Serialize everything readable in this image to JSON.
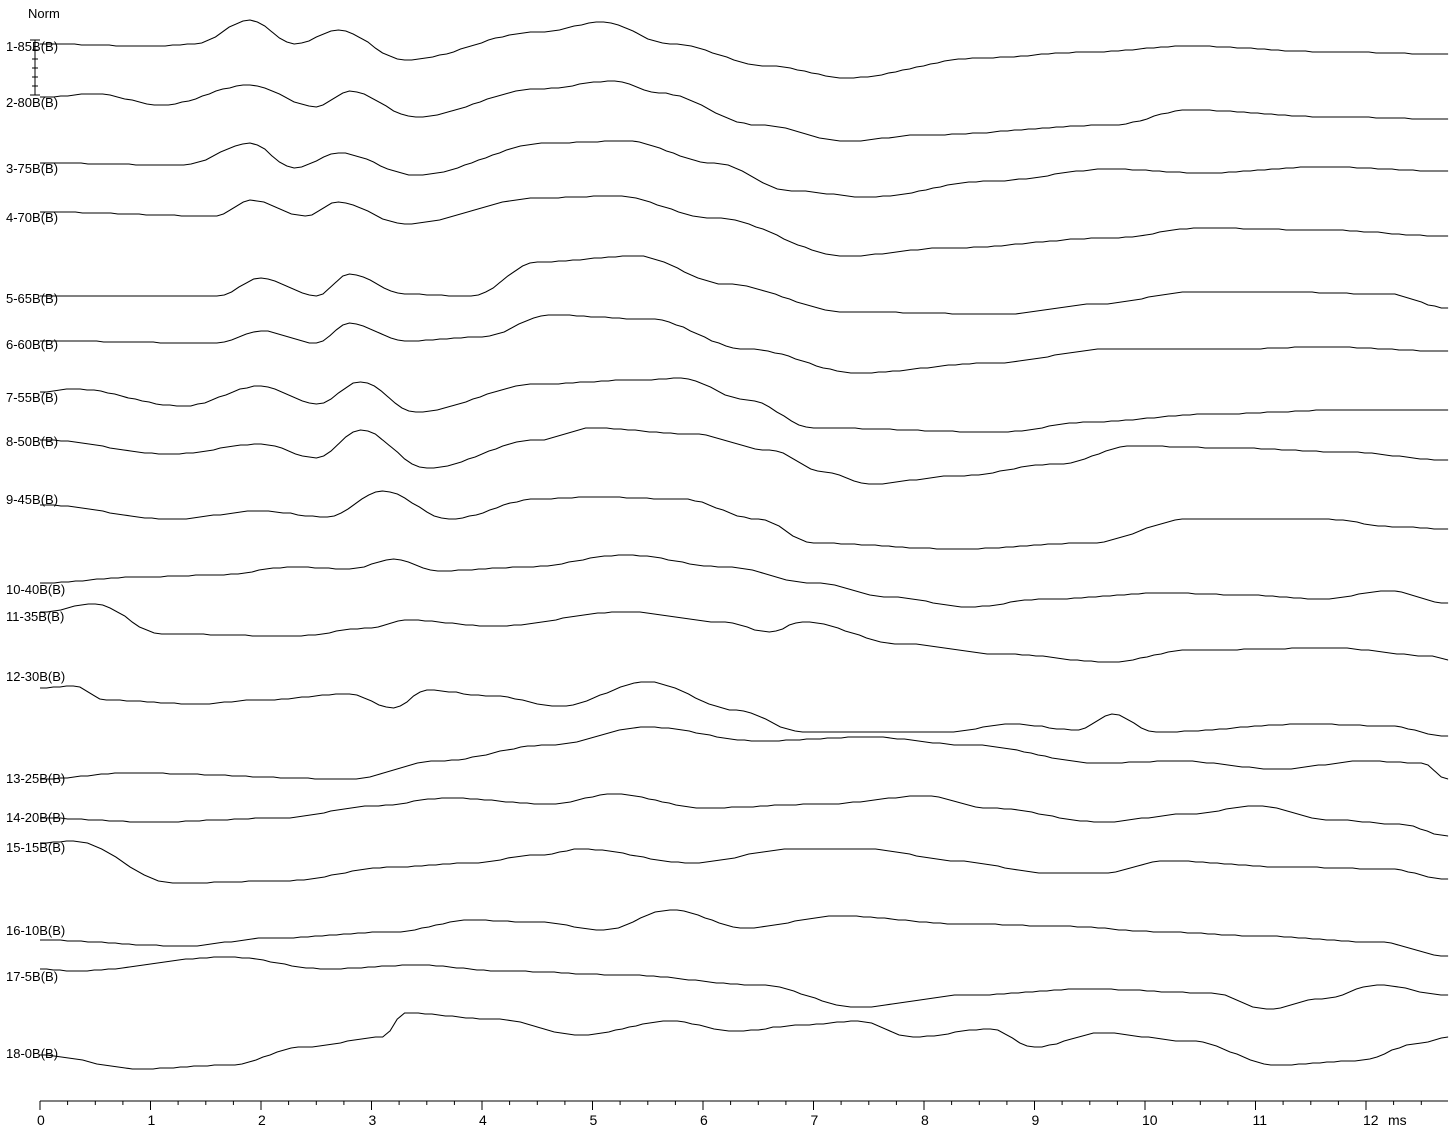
{
  "chart_data": {
    "type": "line",
    "title": "",
    "scale_label": "Norm",
    "xlabel": "ms",
    "xlim": [
      0,
      12.75
    ],
    "x_ticks": [
      "0",
      "1",
      "2",
      "3",
      "4",
      "5",
      "6",
      "7",
      "8",
      "9",
      "10",
      "11",
      "12"
    ],
    "grid": false,
    "series": [
      {
        "name": "1-85B(B)",
        "baseline": 0,
        "points": [
          [
            0,
            0
          ],
          [
            1,
            -2
          ],
          [
            1.4,
            0
          ],
          [
            1.9,
            24
          ],
          [
            2.3,
            0
          ],
          [
            2.7,
            14
          ],
          [
            3.3,
            -16
          ],
          [
            4.5,
            12
          ],
          [
            5.1,
            22
          ],
          [
            5.7,
            0
          ],
          [
            6.6,
            -22
          ],
          [
            7.3,
            -34
          ],
          [
            8.5,
            -14
          ],
          [
            9.5,
            -8
          ],
          [
            10.4,
            -2
          ],
          [
            11.7,
            -8
          ],
          [
            12.75,
            -10
          ]
        ]
      },
      {
        "name": "2-80B(B)",
        "baseline": 0,
        "points": [
          [
            0,
            0
          ],
          [
            0.5,
            3
          ],
          [
            1.1,
            -8
          ],
          [
            1.9,
            12
          ],
          [
            2.5,
            -10
          ],
          [
            2.8,
            6
          ],
          [
            3.4,
            -20
          ],
          [
            4.5,
            8
          ],
          [
            5.2,
            16
          ],
          [
            5.6,
            4
          ],
          [
            6.5,
            -28
          ],
          [
            7.3,
            -44
          ],
          [
            8,
            -38
          ],
          [
            9.7,
            -28
          ],
          [
            10.4,
            -13
          ],
          [
            11.7,
            -20
          ],
          [
            12.75,
            -22
          ]
        ]
      },
      {
        "name": "3-75B(B)",
        "baseline": 0,
        "points": [
          [
            0,
            0
          ],
          [
            1.3,
            -2
          ],
          [
            1.9,
            20
          ],
          [
            2.3,
            -5
          ],
          [
            2.7,
            10
          ],
          [
            3.4,
            -12
          ],
          [
            4.6,
            20
          ],
          [
            5.3,
            22
          ],
          [
            6.1,
            0
          ],
          [
            6.8,
            -28
          ],
          [
            7.5,
            -34
          ],
          [
            8.6,
            -18
          ],
          [
            9.7,
            -6
          ],
          [
            10.5,
            -10
          ],
          [
            11.6,
            -4
          ],
          [
            12.75,
            -8
          ]
        ]
      },
      {
        "name": "4-70B(B)",
        "baseline": 0,
        "points": [
          [
            0,
            0
          ],
          [
            1.6,
            -4
          ],
          [
            1.9,
            12
          ],
          [
            2.4,
            -4
          ],
          [
            2.7,
            10
          ],
          [
            3.3,
            -12
          ],
          [
            4.5,
            14
          ],
          [
            5.2,
            16
          ],
          [
            6.1,
            -6
          ],
          [
            7.3,
            -44
          ],
          [
            8.2,
            -36
          ],
          [
            9.7,
            -26
          ],
          [
            10.5,
            -16
          ],
          [
            11.6,
            -18
          ],
          [
            12.75,
            -24
          ]
        ]
      },
      {
        "name": "5-65B(B)",
        "baseline": 0,
        "points": [
          [
            0,
            0
          ],
          [
            1.6,
            0
          ],
          [
            2,
            18
          ],
          [
            2.5,
            0
          ],
          [
            2.8,
            22
          ],
          [
            3.3,
            2
          ],
          [
            3.9,
            0
          ],
          [
            4.5,
            34
          ],
          [
            5.4,
            40
          ],
          [
            6.2,
            12
          ],
          [
            7.3,
            -16
          ],
          [
            8.7,
            -18
          ],
          [
            9.6,
            -8
          ],
          [
            10.4,
            4
          ],
          [
            11.2,
            4
          ],
          [
            12.2,
            2
          ],
          [
            12.75,
            -12
          ]
        ]
      },
      {
        "name": "6-60B(B)",
        "baseline": 0,
        "points": [
          [
            0,
            0
          ],
          [
            1.6,
            -2
          ],
          [
            2,
            10
          ],
          [
            2.5,
            -2
          ],
          [
            2.8,
            18
          ],
          [
            3.3,
            0
          ],
          [
            4,
            4
          ],
          [
            4.6,
            26
          ],
          [
            5.5,
            22
          ],
          [
            6.4,
            -8
          ],
          [
            7.4,
            -32
          ],
          [
            8.6,
            -22
          ],
          [
            9.7,
            -8
          ],
          [
            10.8,
            -8
          ],
          [
            11.6,
            -6
          ],
          [
            12.75,
            -10
          ]
        ]
      },
      {
        "name": "7-55B(B)",
        "baseline": 0,
        "points": [
          [
            0,
            0
          ],
          [
            0.3,
            3
          ],
          [
            1.3,
            -14
          ],
          [
            2,
            6
          ],
          [
            2.5,
            -12
          ],
          [
            2.9,
            10
          ],
          [
            3.4,
            -20
          ],
          [
            4.5,
            8
          ],
          [
            5.4,
            12
          ],
          [
            5.8,
            14
          ],
          [
            6.4,
            -8
          ],
          [
            7,
            -36
          ],
          [
            8.7,
            -40
          ],
          [
            9.5,
            -30
          ],
          [
            10.6,
            -22
          ],
          [
            11.8,
            -18
          ],
          [
            12.75,
            -18
          ]
        ]
      },
      {
        "name": "8-50B(B)",
        "baseline": 0,
        "points": [
          [
            0,
            0
          ],
          [
            1.2,
            -14
          ],
          [
            2,
            -4
          ],
          [
            2.5,
            -18
          ],
          [
            2.9,
            10
          ],
          [
            3.5,
            -28
          ],
          [
            4.5,
            0
          ],
          [
            5,
            12
          ],
          [
            5.9,
            6
          ],
          [
            6.6,
            -10
          ],
          [
            7.1,
            -32
          ],
          [
            7.5,
            -44
          ],
          [
            8.3,
            -36
          ],
          [
            9.2,
            -24
          ],
          [
            9.9,
            -6
          ],
          [
            10.8,
            -8
          ],
          [
            11.8,
            -12
          ],
          [
            12.75,
            -20
          ]
        ]
      },
      {
        "name": "9-45B(B)",
        "baseline": 0,
        "points": [
          [
            0,
            0
          ],
          [
            1.2,
            -14
          ],
          [
            2,
            -6
          ],
          [
            2.6,
            -12
          ],
          [
            3.1,
            14
          ],
          [
            3.7,
            -14
          ],
          [
            4.5,
            6
          ],
          [
            5,
            8
          ],
          [
            5.8,
            6
          ],
          [
            6.5,
            -14
          ],
          [
            7,
            -38
          ],
          [
            8.3,
            -44
          ],
          [
            9.5,
            -38
          ],
          [
            10.4,
            -14
          ],
          [
            11.6,
            -14
          ],
          [
            12.3,
            -22
          ],
          [
            12.75,
            -24
          ]
        ]
      },
      {
        "name": "10-40B(B)",
        "baseline": 0,
        "points": [
          [
            0,
            0
          ],
          [
            0.9,
            6
          ],
          [
            1.6,
            8
          ],
          [
            2.3,
            16
          ],
          [
            2.8,
            14
          ],
          [
            3.2,
            24
          ],
          [
            3.6,
            12
          ],
          [
            4.4,
            16
          ],
          [
            5.3,
            28
          ],
          [
            6.2,
            16
          ],
          [
            7,
            0
          ],
          [
            7.7,
            -14
          ],
          [
            8.4,
            -24
          ],
          [
            9.1,
            -16
          ],
          [
            10.2,
            -10
          ],
          [
            10.9,
            -12
          ],
          [
            11.6,
            -16
          ],
          [
            12.2,
            -8
          ],
          [
            12.75,
            -20
          ]
        ]
      },
      {
        "name": "11-35B(B)",
        "baseline": 0,
        "points": [
          [
            0,
            0
          ],
          [
            0.5,
            8
          ],
          [
            1.1,
            -22
          ],
          [
            2.3,
            -24
          ],
          [
            3,
            -16
          ],
          [
            3.3,
            -8
          ],
          [
            4.1,
            -14
          ],
          [
            5.3,
            0
          ],
          [
            6.2,
            -10
          ],
          [
            6.6,
            -20
          ],
          [
            6.9,
            -10
          ],
          [
            7.8,
            -32
          ],
          [
            8.7,
            -42
          ],
          [
            9.7,
            -50
          ],
          [
            10.4,
            -38
          ],
          [
            11.7,
            -36
          ],
          [
            12.6,
            -44
          ],
          [
            12.75,
            -48
          ]
        ]
      },
      {
        "name": "12-30B(B)",
        "baseline": 0,
        "points": [
          [
            0,
            0
          ],
          [
            0.3,
            2
          ],
          [
            0.6,
            -12
          ],
          [
            1.4,
            -16
          ],
          [
            2,
            -12
          ],
          [
            2.8,
            -6
          ],
          [
            3.2,
            -20
          ],
          [
            3.5,
            -2
          ],
          [
            4.1,
            -8
          ],
          [
            4.7,
            -18
          ],
          [
            5.5,
            6
          ],
          [
            6.3,
            -22
          ],
          [
            6.9,
            -44
          ],
          [
            8.2,
            -44
          ],
          [
            8.8,
            -36
          ],
          [
            9.4,
            -42
          ],
          [
            9.7,
            -26
          ],
          [
            10.1,
            -44
          ],
          [
            11.5,
            -36
          ],
          [
            12.2,
            -38
          ],
          [
            12.75,
            -48
          ]
        ]
      },
      {
        "name": "13-25B(B)",
        "baseline": 0,
        "points": [
          [
            0,
            0
          ],
          [
            0.8,
            6
          ],
          [
            2.8,
            0
          ],
          [
            3.6,
            18
          ],
          [
            4.6,
            34
          ],
          [
            5.5,
            52
          ],
          [
            6.5,
            38
          ],
          [
            7.5,
            42
          ],
          [
            8.4,
            34
          ],
          [
            9.6,
            16
          ],
          [
            10.3,
            18
          ],
          [
            11.2,
            10
          ],
          [
            12,
            18
          ],
          [
            12.5,
            16
          ],
          [
            12.75,
            0
          ]
        ]
      },
      {
        "name": "14-20B(B)",
        "baseline": 0,
        "points": [
          [
            0,
            0
          ],
          [
            1,
            -4
          ],
          [
            2.2,
            0
          ],
          [
            3,
            12
          ],
          [
            3.7,
            20
          ],
          [
            4.6,
            14
          ],
          [
            5.2,
            24
          ],
          [
            6,
            10
          ],
          [
            7.1,
            14
          ],
          [
            8,
            22
          ],
          [
            8.6,
            10
          ],
          [
            9.6,
            -4
          ],
          [
            10.4,
            4
          ],
          [
            11,
            12
          ],
          [
            11.7,
            -2
          ],
          [
            12.3,
            -6
          ],
          [
            12.75,
            -18
          ]
        ]
      },
      {
        "name": "15-15B(B)",
        "baseline": 0,
        "points": [
          [
            0,
            0
          ],
          [
            0.3,
            2
          ],
          [
            1.2,
            -40
          ],
          [
            2.2,
            -38
          ],
          [
            3.2,
            -24
          ],
          [
            3.9,
            -20
          ],
          [
            4.5,
            -12
          ],
          [
            4.9,
            -6
          ],
          [
            5.9,
            -20
          ],
          [
            6.8,
            -6
          ],
          [
            7.5,
            -6
          ],
          [
            8.3,
            -18
          ],
          [
            9.1,
            -30
          ],
          [
            9.6,
            -30
          ],
          [
            10.2,
            -18
          ],
          [
            11.3,
            -24
          ],
          [
            12.2,
            -26
          ],
          [
            12.75,
            -36
          ]
        ]
      },
      {
        "name": "16-10B(B)",
        "baseline": 0,
        "points": [
          [
            0,
            0
          ],
          [
            1.3,
            -6
          ],
          [
            2.1,
            2
          ],
          [
            3.2,
            8
          ],
          [
            3.9,
            20
          ],
          [
            4.5,
            18
          ],
          [
            5.1,
            10
          ],
          [
            5.7,
            30
          ],
          [
            6.4,
            12
          ],
          [
            7.2,
            24
          ],
          [
            8.4,
            16
          ],
          [
            9.2,
            14
          ],
          [
            10.2,
            8
          ],
          [
            11,
            4
          ],
          [
            12.1,
            -2
          ],
          [
            12.75,
            -16
          ]
        ]
      },
      {
        "name": "17-5B(B)",
        "baseline": 0,
        "points": [
          [
            0,
            0
          ],
          [
            0.3,
            -2
          ],
          [
            1.7,
            12
          ],
          [
            2.6,
            0
          ],
          [
            3.4,
            4
          ],
          [
            4.2,
            -2
          ],
          [
            5.3,
            -6
          ],
          [
            6.5,
            -16
          ],
          [
            7.4,
            -38
          ],
          [
            8.4,
            -26
          ],
          [
            9.5,
            -20
          ],
          [
            10.6,
            -24
          ],
          [
            11.1,
            -40
          ],
          [
            11.6,
            -30
          ],
          [
            12.1,
            -16
          ],
          [
            12.75,
            -26
          ]
        ]
      },
      {
        "name": "18-0B(B)",
        "baseline": 0,
        "points": [
          [
            0,
            0
          ],
          [
            0.9,
            -14
          ],
          [
            1.7,
            -10
          ],
          [
            2.4,
            8
          ],
          [
            3.1,
            18
          ],
          [
            3.3,
            42
          ],
          [
            4.1,
            36
          ],
          [
            4.9,
            20
          ],
          [
            5.7,
            34
          ],
          [
            6.3,
            24
          ],
          [
            6.9,
            30
          ],
          [
            7.4,
            34
          ],
          [
            7.9,
            18
          ],
          [
            8.6,
            26
          ],
          [
            9,
            8
          ],
          [
            9.6,
            22
          ],
          [
            10.4,
            14
          ],
          [
            11.2,
            -10
          ],
          [
            11.9,
            -6
          ],
          [
            12.5,
            12
          ],
          [
            12.75,
            18
          ]
        ]
      }
    ]
  }
}
